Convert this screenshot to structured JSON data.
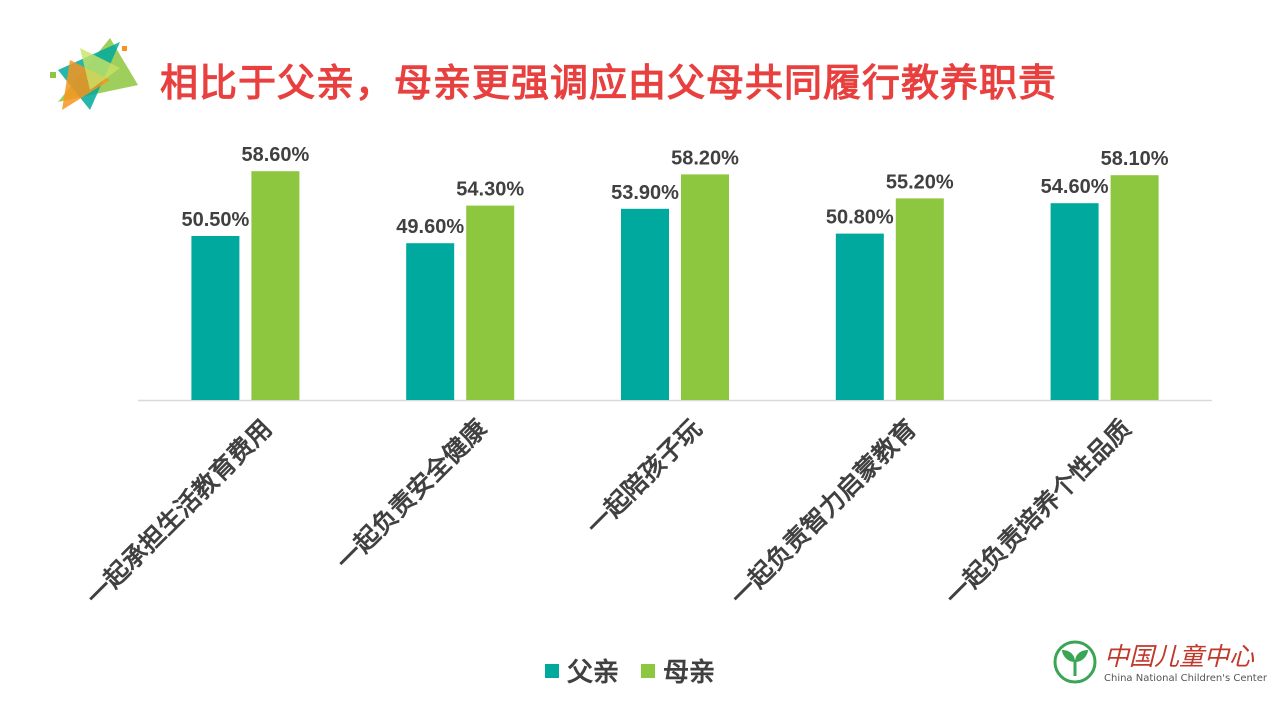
{
  "title": "相比于父亲，母亲更强调应由父母共同履行教养职责",
  "org": {
    "name_cn": "中国儿童中心",
    "name_en": "China National Children's Center"
  },
  "colors": {
    "title": "#e8403e",
    "father": "#00a99d",
    "mother": "#8dc63f",
    "axis": "#d9d9d9",
    "label": "#404040"
  },
  "chart_data": {
    "type": "bar",
    "categories": [
      "一起承担生活教育费用",
      "一起负责安全健康",
      "一起陪孩子玩",
      "一起负责智力启蒙教育",
      "一起负责培养个性品质"
    ],
    "series": [
      {
        "name": "父亲",
        "values": [
          50.5,
          49.6,
          53.9,
          50.8,
          54.6
        ],
        "labels": [
          "50.50%",
          "49.60%",
          "53.90%",
          "50.80%",
          "54.60%"
        ]
      },
      {
        "name": "母亲",
        "values": [
          58.6,
          54.3,
          58.2,
          55.2,
          58.1
        ],
        "labels": [
          "58.60%",
          "54.30%",
          "58.20%",
          "55.20%",
          "58.10%"
        ]
      }
    ],
    "title": "相比于父亲，母亲更强调应由父母共同履行教养职责",
    "legend": "bottom",
    "ylim": [
      30,
      60
    ],
    "grid": false
  }
}
